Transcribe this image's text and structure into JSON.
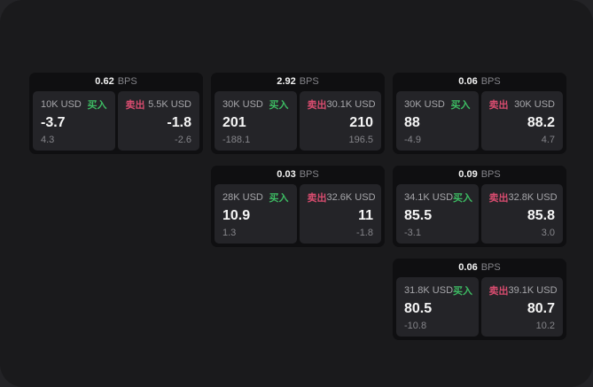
{
  "labels": {
    "bps_unit": "BPS",
    "buy": "买入",
    "sell": "卖出"
  },
  "colors": {
    "surface": "#1a1a1c",
    "backdrop": "#232326",
    "card_bg": "#0f0f11",
    "panel_bg": "#242428",
    "buy_green": "#3dbb63",
    "sell_red": "#d84c6f",
    "primary_text": "#f5f5f5",
    "muted_text": "#85858a"
  },
  "cards": [
    {
      "row": 0,
      "col": 0,
      "bps": "0.62",
      "buy": {
        "amount": "10K USD",
        "value": "-3.7",
        "delta": "4.3"
      },
      "sell": {
        "amount": "5.5K USD",
        "value": "-1.8",
        "delta": "-2.6"
      }
    },
    {
      "row": 0,
      "col": 1,
      "bps": "2.92",
      "buy": {
        "amount": "30K USD",
        "value": "201",
        "delta": "-188.1"
      },
      "sell": {
        "amount": "30.1K USD",
        "value": "210",
        "delta": "196.5"
      }
    },
    {
      "row": 0,
      "col": 2,
      "bps": "0.06",
      "buy": {
        "amount": "30K USD",
        "value": "88",
        "delta": "-4.9"
      },
      "sell": {
        "amount": "30K USD",
        "value": "88.2",
        "delta": "4.7"
      }
    },
    {
      "row": 1,
      "col": 1,
      "bps": "0.03",
      "buy": {
        "amount": "28K USD",
        "value": "10.9",
        "delta": "1.3"
      },
      "sell": {
        "amount": "32.6K USD",
        "value": "11",
        "delta": "-1.8"
      }
    },
    {
      "row": 1,
      "col": 2,
      "bps": "0.09",
      "buy": {
        "amount": "34.1K USD",
        "value": "85.5",
        "delta": "-3.1"
      },
      "sell": {
        "amount": "32.8K USD",
        "value": "85.8",
        "delta": "3.0"
      }
    },
    {
      "row": 2,
      "col": 2,
      "bps": "0.06",
      "buy": {
        "amount": "31.8K USD",
        "value": "80.5",
        "delta": "-10.8"
      },
      "sell": {
        "amount": "39.1K USD",
        "value": "80.7",
        "delta": "10.2"
      }
    }
  ]
}
